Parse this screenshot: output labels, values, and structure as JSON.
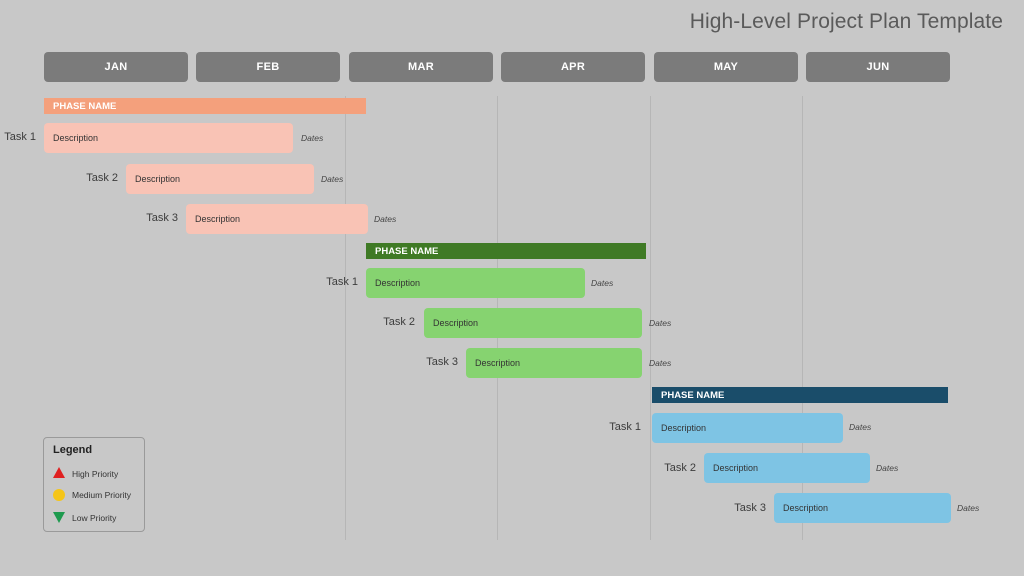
{
  "title": "High-Level Project Plan Template",
  "months": [
    "JAN",
    "FEB",
    "MAR",
    "APR",
    "MAY",
    "JUN"
  ],
  "phases": [
    {
      "name": "PHASE NAME",
      "color": "#f4a07c",
      "bar_color": "#f9c3b5",
      "tasks": [
        {
          "label": "Task 1",
          "description": "Description",
          "dates": "Dates"
        },
        {
          "label": "Task 2",
          "description": "Description",
          "dates": "Dates"
        },
        {
          "label": "Task 3",
          "description": "Description",
          "dates": "Dates"
        }
      ]
    },
    {
      "name": "PHASE NAME",
      "color": "#3f7a25",
      "bar_color": "#86d370",
      "tasks": [
        {
          "label": "Task 1",
          "description": "Description",
          "dates": "Dates"
        },
        {
          "label": "Task 2",
          "description": "Description",
          "dates": "Dates"
        },
        {
          "label": "Task 3",
          "description": "Description",
          "dates": "Dates"
        }
      ]
    },
    {
      "name": "PHASE NAME",
      "color": "#1a4d6a",
      "bar_color": "#7ec4e4",
      "tasks": [
        {
          "label": "Task 1",
          "description": "Description",
          "dates": "Dates"
        },
        {
          "label": "Task 2",
          "description": "Description",
          "dates": "Dates"
        },
        {
          "label": "Task 3",
          "description": "Description",
          "dates": "Dates"
        }
      ]
    }
  ],
  "legend": {
    "title": "Legend",
    "high": "High Priority",
    "medium": "Medium Priority",
    "low": "Low Priority",
    "high_color": "#e02020",
    "medium_color": "#f5c518",
    "low_color": "#1e9a4e"
  }
}
